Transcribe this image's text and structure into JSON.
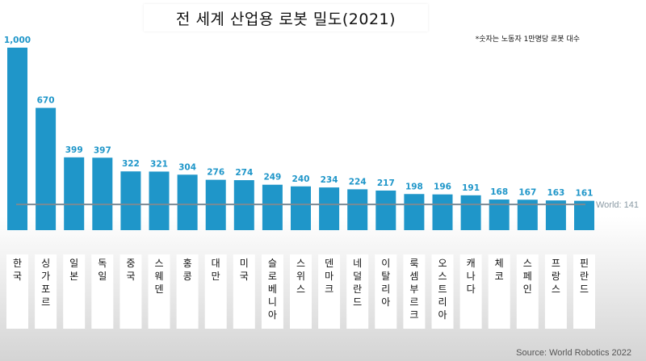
{
  "title": "전 세계 산업용 로봇 밀도(2021)",
  "note": "*숫자는 노동자 1만명당 로봇 대수",
  "source": "Source: World Robotics 2022",
  "colors": {
    "bar": "#1f96c9",
    "value_label": "#1f96c9",
    "world_line": "#7a8a94",
    "world_label": "#8a9aa4"
  },
  "chart_data": {
    "type": "bar",
    "title": "전 세계 산업용 로봇 밀도(2021)",
    "xlabel": "",
    "ylabel": "",
    "ylim": [
      0,
      1000
    ],
    "grid": false,
    "categories": [
      "한국",
      "싱가포르",
      "일본",
      "독일",
      "중국",
      "스웨덴",
      "홍콩",
      "대만",
      "미국",
      "슬로베니아",
      "스위스",
      "덴마크",
      "네덜란드",
      "이탈리아",
      "룩셈부르크",
      "오스트리아",
      "캐나다",
      "체코",
      "스페인",
      "프랑스",
      "핀란드"
    ],
    "values": [
      1000,
      670,
      399,
      397,
      322,
      321,
      304,
      276,
      274,
      249,
      240,
      234,
      224,
      217,
      198,
      196,
      191,
      168,
      167,
      163,
      161
    ],
    "value_labels": [
      "1,000",
      "670",
      "399",
      "397",
      "322",
      "321",
      "304",
      "276",
      "274",
      "249",
      "240",
      "234",
      "224",
      "217",
      "198",
      "196",
      "191",
      "168",
      "167",
      "163",
      "161"
    ],
    "reference_line": {
      "label": "World: 141",
      "value": 141
    }
  }
}
